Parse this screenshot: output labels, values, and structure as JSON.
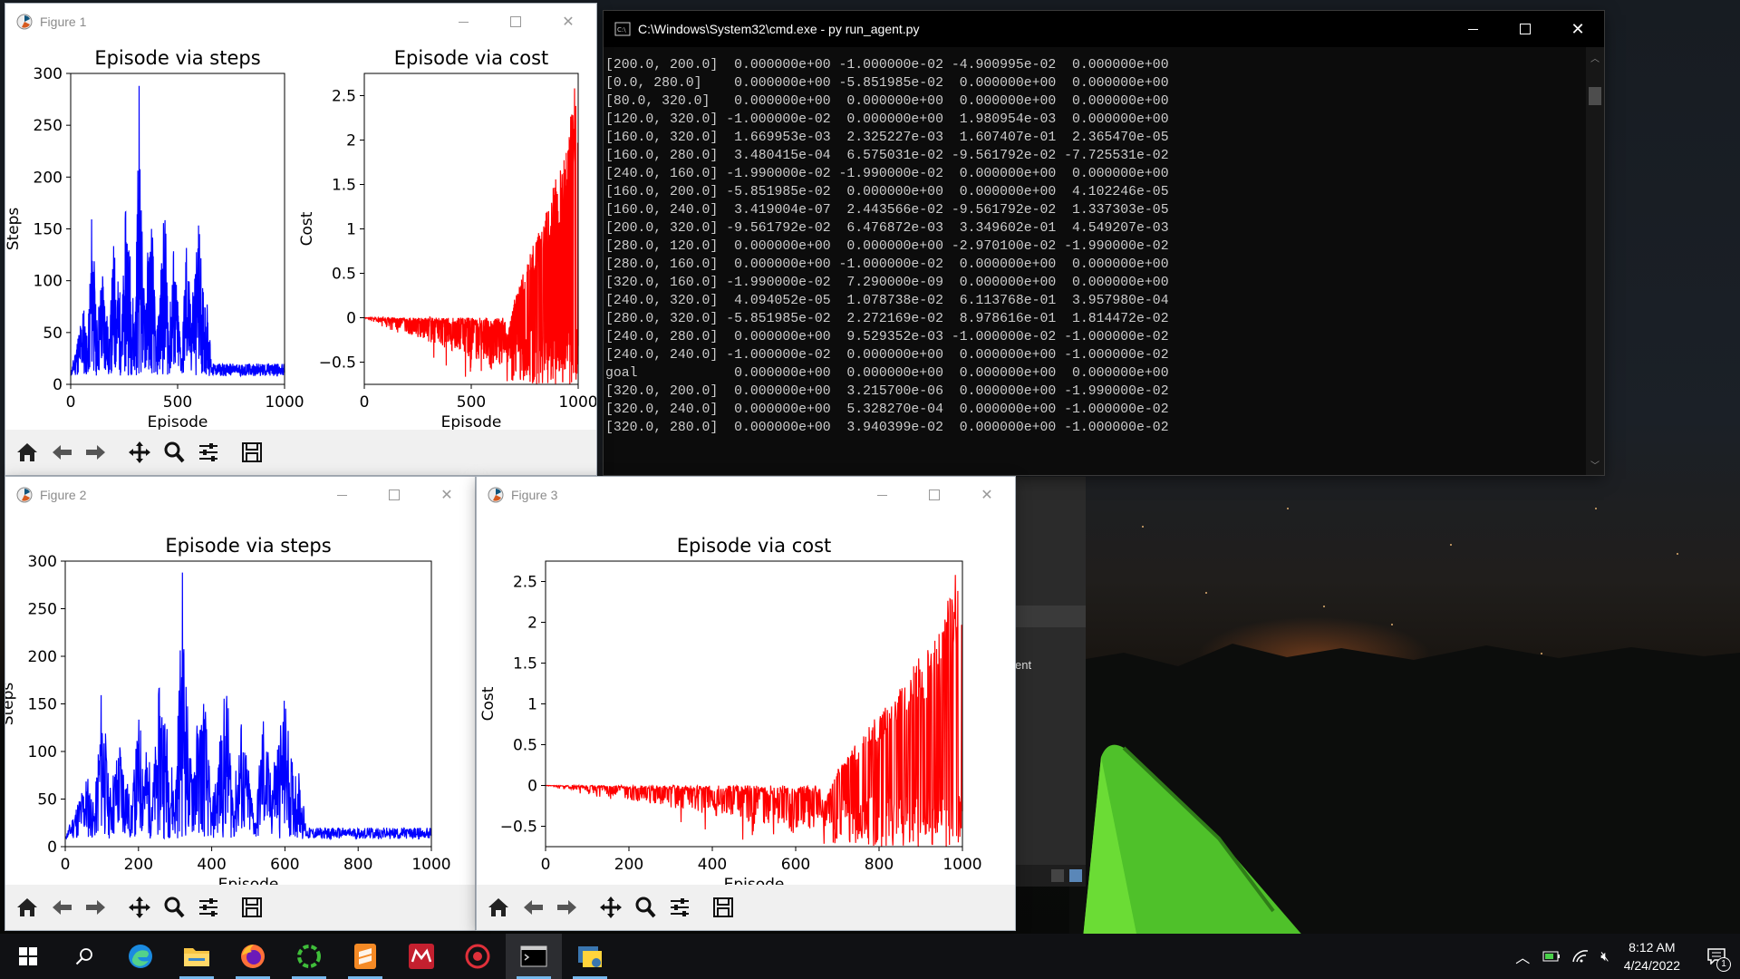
{
  "desktop": {
    "description": ""
  },
  "figure1": {
    "title": "Figure 1",
    "left_title": "Episode via steps",
    "right_title": "Episode via cost",
    "left_ylabel": "Steps",
    "right_ylabel": "Cost",
    "xlabel": "Episode"
  },
  "figure2": {
    "title": "Figure 2",
    "chart_title": "Episode via steps",
    "ylabel": "Steps",
    "xlabel": "Episode"
  },
  "figure3": {
    "title": "Figure 3",
    "chart_title": "Episode via cost",
    "ylabel": "Cost",
    "xlabel": "Episode"
  },
  "cmd": {
    "title": "C:\\Windows\\System32\\cmd.exe - py  run_agent.py",
    "lines": [
      "[200.0, 200.0]  0.000000e+00 -1.000000e-02 -4.900995e-02  0.000000e+00",
      "[0.0, 280.0]    0.000000e+00 -5.851985e-02  0.000000e+00  0.000000e+00",
      "[80.0, 320.0]   0.000000e+00  0.000000e+00  0.000000e+00  0.000000e+00",
      "[120.0, 320.0] -1.000000e-02  0.000000e+00  1.980954e-03  0.000000e+00",
      "[160.0, 320.0]  1.669953e-03  2.325227e-03  1.607407e-01  2.365470e-05",
      "[160.0, 280.0]  3.480415e-04  6.575031e-02 -9.561792e-02 -7.725531e-02",
      "[240.0, 160.0] -1.990000e-02 -1.990000e-02  0.000000e+00  0.000000e+00",
      "[160.0, 200.0] -5.851985e-02  0.000000e+00  0.000000e+00  4.102246e-05",
      "[160.0, 240.0]  3.419004e-07  2.443566e-02 -9.561792e-02  1.337303e-05",
      "[200.0, 320.0] -9.561792e-02  6.476872e-03  3.349602e-01  4.549207e-03",
      "[280.0, 120.0]  0.000000e+00  0.000000e+00 -2.970100e-02 -1.990000e-02",
      "[280.0, 160.0]  0.000000e+00 -1.000000e-02  0.000000e+00  0.000000e+00",
      "[320.0, 160.0] -1.990000e-02  7.290000e-09  0.000000e+00  0.000000e+00",
      "[240.0, 320.0]  4.094052e-05  1.078738e-02  6.113768e-01  3.957980e-04",
      "[280.0, 320.0] -5.851985e-02  2.272169e-02  8.978616e-01  1.814472e-02",
      "[240.0, 280.0]  0.000000e+00  9.529352e-03 -1.000000e-02 -1.000000e-02",
      "[240.0, 240.0] -1.000000e-02  0.000000e+00  0.000000e+00 -1.000000e-02",
      "goal            0.000000e+00  0.000000e+00  0.000000e+00  0.000000e+00",
      "[320.0, 200.0]  0.000000e+00  3.215700e-06  0.000000e+00 -1.990000e-02",
      "[320.0, 240.0]  0.000000e+00  5.328270e-04  0.000000e+00 -1.000000e-02",
      "[320.0, 280.0]  0.000000e+00  3.940399e-02  0.000000e+00 -1.000000e-02"
    ]
  },
  "bg_fragment_text": "ent",
  "taskbar": {
    "apps": [
      "windows-start",
      "search",
      "edge",
      "file-explorer",
      "firefox",
      "spinner-app",
      "sublime-text",
      "mendeley",
      "security-app",
      "cmd",
      "python"
    ],
    "time": "8:12 AM",
    "date": "4/24/2022",
    "notification_count": "1"
  },
  "colors": {
    "steps_series": "#0000ff",
    "cost_series": "#ff0000",
    "cmd_bg": "#0c0c0c",
    "taskbar_bg": "#101114"
  },
  "chart_data": [
    {
      "type": "line",
      "title": "Episode via steps",
      "xlabel": "Episode",
      "ylabel": "Steps",
      "xlim": [
        0,
        1000
      ],
      "ylim": [
        0,
        300
      ],
      "xticks": [
        0,
        500,
        1000
      ],
      "yticks": [
        0,
        50,
        100,
        150,
        200,
        250,
        300
      ],
      "series": [
        {
          "x": [
            0,
            60,
            80,
            100,
            120,
            150,
            180,
            200,
            240,
            260,
            300,
            320,
            340,
            380,
            400,
            440,
            460,
            480,
            520,
            540,
            560,
            600,
            620,
            640,
            660,
            700,
            800,
            900,
            1000
          ],
          "values": [
            10,
            80,
            40,
            185,
            60,
            120,
            45,
            140,
            75,
            190,
            60,
            288,
            95,
            170,
            40,
            180,
            55,
            140,
            30,
            150,
            80,
            160,
            90,
            80,
            15,
            12,
            14,
            12,
            15
          ]
        }
      ]
    },
    {
      "type": "line",
      "title": "Episode via cost",
      "xlabel": "Episode",
      "ylabel": "Cost",
      "xlim": [
        0,
        1000
      ],
      "ylim": [
        -0.75,
        2.75
      ],
      "xticks": [
        0,
        500,
        1000
      ],
      "yticks": [
        -0.5,
        0.0,
        0.5,
        1.0,
        1.5,
        2.0,
        2.5
      ],
      "series": [
        {
          "x": [
            0,
            100,
            200,
            300,
            400,
            500,
            600,
            650,
            700,
            750,
            800,
            850,
            900,
            950,
            980,
            1000
          ],
          "values": [
            0.0,
            -0.05,
            -0.15,
            -0.25,
            -0.35,
            -0.45,
            -0.55,
            -0.6,
            0.2,
            0.55,
            0.9,
            1.2,
            1.6,
            1.95,
            2.7,
            2.1
          ]
        }
      ]
    },
    {
      "type": "line",
      "title": "Episode via steps",
      "xlabel": "Episode",
      "ylabel": "Steps",
      "xlim": [
        0,
        1000
      ],
      "ylim": [
        0,
        300
      ],
      "xticks": [
        0,
        200,
        400,
        600,
        800,
        1000
      ],
      "yticks": [
        0,
        50,
        100,
        150,
        200,
        250,
        300
      ],
      "series": [
        {
          "x": [
            0,
            60,
            80,
            100,
            120,
            150,
            180,
            200,
            240,
            260,
            300,
            320,
            340,
            380,
            400,
            440,
            460,
            480,
            520,
            540,
            560,
            600,
            620,
            640,
            660,
            700,
            800,
            900,
            1000
          ],
          "values": [
            10,
            80,
            40,
            185,
            60,
            120,
            45,
            140,
            75,
            190,
            60,
            288,
            95,
            170,
            40,
            180,
            55,
            140,
            30,
            150,
            80,
            160,
            90,
            80,
            15,
            12,
            14,
            12,
            15
          ]
        }
      ]
    },
    {
      "type": "line",
      "title": "Episode via cost",
      "xlabel": "Episode",
      "ylabel": "Cost",
      "xlim": [
        0,
        1000
      ],
      "ylim": [
        -0.75,
        2.75
      ],
      "xticks": [
        0,
        200,
        400,
        600,
        800,
        1000
      ],
      "yticks": [
        -0.5,
        0.0,
        0.5,
        1.0,
        1.5,
        2.0,
        2.5
      ],
      "series": [
        {
          "x": [
            0,
            100,
            200,
            300,
            400,
            500,
            600,
            650,
            700,
            750,
            800,
            850,
            900,
            950,
            980,
            1000
          ],
          "values": [
            0.0,
            -0.05,
            -0.15,
            -0.25,
            -0.35,
            -0.45,
            -0.55,
            -0.6,
            0.2,
            0.55,
            0.9,
            1.2,
            1.6,
            1.95,
            2.7,
            2.1
          ]
        }
      ]
    }
  ]
}
